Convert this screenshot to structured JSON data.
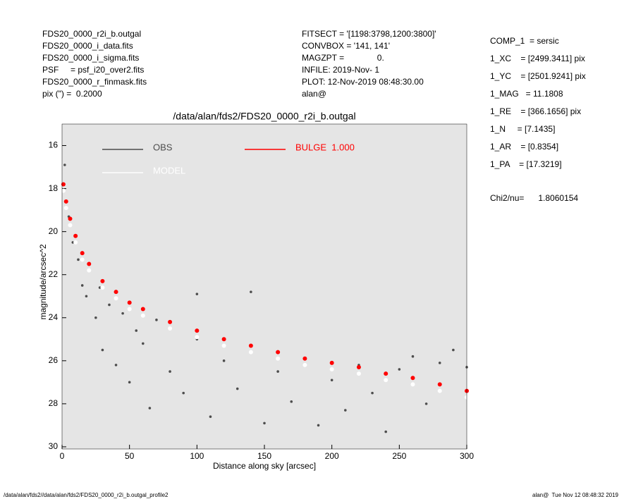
{
  "header_left": [
    "FDS20_0000_r2i_b.outgal",
    "FDS20_0000_i_data.fits",
    "FDS20_0000_i_sigma.fits",
    "PSF     = psf_i20_over2.fits",
    "FDS20_0000_r_finmask.fits",
    "pix (\") =  0.2000"
  ],
  "header_middle": [
    "FITSECT = '[1198:3798,1200:3800]'",
    "CONVBOX = '141, 141'",
    "MAGZPT =              0.",
    "INFILE: 2019-Nov- 1",
    "PLOT: 12-Nov-2019 08:48:30.00",
    "alan@"
  ],
  "parameters": [
    "COMP_1  = sersic",
    "1_XC    = [2499.3411] pix",
    "1_YC    = [2501.9241] pix",
    "1_MAG   = 11.1808",
    "1_RE    = [366.1656] pix",
    "1_N     = [7.1435]",
    "1_AR    = [0.8354]",
    "1_PA    = [17.3219]"
  ],
  "fit_statistic": "Chi2/nu=      1.8060154",
  "footer": {
    "left": "/data/alan/fds2//data/alan/fds2/FDS20_0000_r2i_b.outgal_profile2",
    "right": "alan@  Tue Nov 12 08:48:32 2019"
  },
  "chart_data": {
    "type": "scatter",
    "title": "/data/alan/fds2/FDS20_0000_r2i_b.outgal",
    "x_label": "Distance along sky [arcsec]",
    "y_label": "magnitude/arcsec^2",
    "xlim": [
      0,
      300
    ],
    "xticks": [
      0,
      50,
      100,
      150,
      200,
      250,
      300
    ],
    "ylim": [
      15,
      30.1
    ],
    "y_reversed": true,
    "yticks": [
      16,
      18,
      20,
      22,
      24,
      26,
      28,
      30
    ],
    "series": [
      {
        "name": "OBS",
        "color": "#4d4d4d",
        "x": [
          2,
          5,
          8,
          12,
          15,
          18,
          20,
          25,
          28,
          30,
          35,
          40,
          45,
          50,
          55,
          60,
          65,
          70,
          80,
          90,
          100,
          110,
          120,
          130,
          140,
          150,
          160,
          170,
          180,
          190,
          200,
          210,
          220,
          230,
          240,
          250,
          260,
          270,
          280,
          290,
          300,
          140,
          100
        ],
        "values": [
          16.9,
          19.3,
          20.5,
          21.3,
          22.5,
          23.0,
          21.8,
          24.0,
          22.6,
          25.5,
          23.4,
          26.2,
          23.8,
          27.0,
          24.6,
          25.2,
          28.2,
          24.1,
          26.5,
          27.5,
          25.0,
          28.6,
          26.0,
          27.3,
          25.6,
          28.9,
          26.5,
          27.9,
          25.9,
          29.0,
          26.9,
          28.3,
          26.2,
          27.5,
          29.3,
          26.4,
          25.8,
          28.0,
          26.1,
          25.5,
          26.3,
          22.8,
          22.9
        ]
      },
      {
        "name": "MODEL",
        "color": "#ffffff",
        "x": [
          1,
          3,
          6,
          10,
          15,
          20,
          30,
          40,
          50,
          60,
          80,
          100,
          120,
          140,
          160,
          180,
          200,
          220,
          240,
          260,
          280,
          300
        ],
        "values": [
          18.1,
          18.9,
          19.7,
          20.5,
          21.3,
          21.8,
          22.6,
          23.1,
          23.6,
          23.9,
          24.5,
          24.9,
          25.3,
          25.6,
          25.9,
          26.2,
          26.4,
          26.6,
          26.9,
          27.1,
          27.4,
          27.7
        ]
      },
      {
        "name": "BULGE  1.000",
        "color": "#ff0000",
        "x": [
          1,
          3,
          6,
          10,
          15,
          20,
          30,
          40,
          50,
          60,
          80,
          100,
          120,
          140,
          160,
          180,
          200,
          220,
          240,
          260,
          280,
          300
        ],
        "values": [
          17.8,
          18.6,
          19.4,
          20.2,
          21.0,
          21.5,
          22.3,
          22.8,
          23.3,
          23.6,
          24.2,
          24.6,
          25.0,
          25.3,
          25.6,
          25.9,
          26.1,
          26.3,
          26.6,
          26.8,
          27.1,
          27.4
        ]
      }
    ]
  }
}
